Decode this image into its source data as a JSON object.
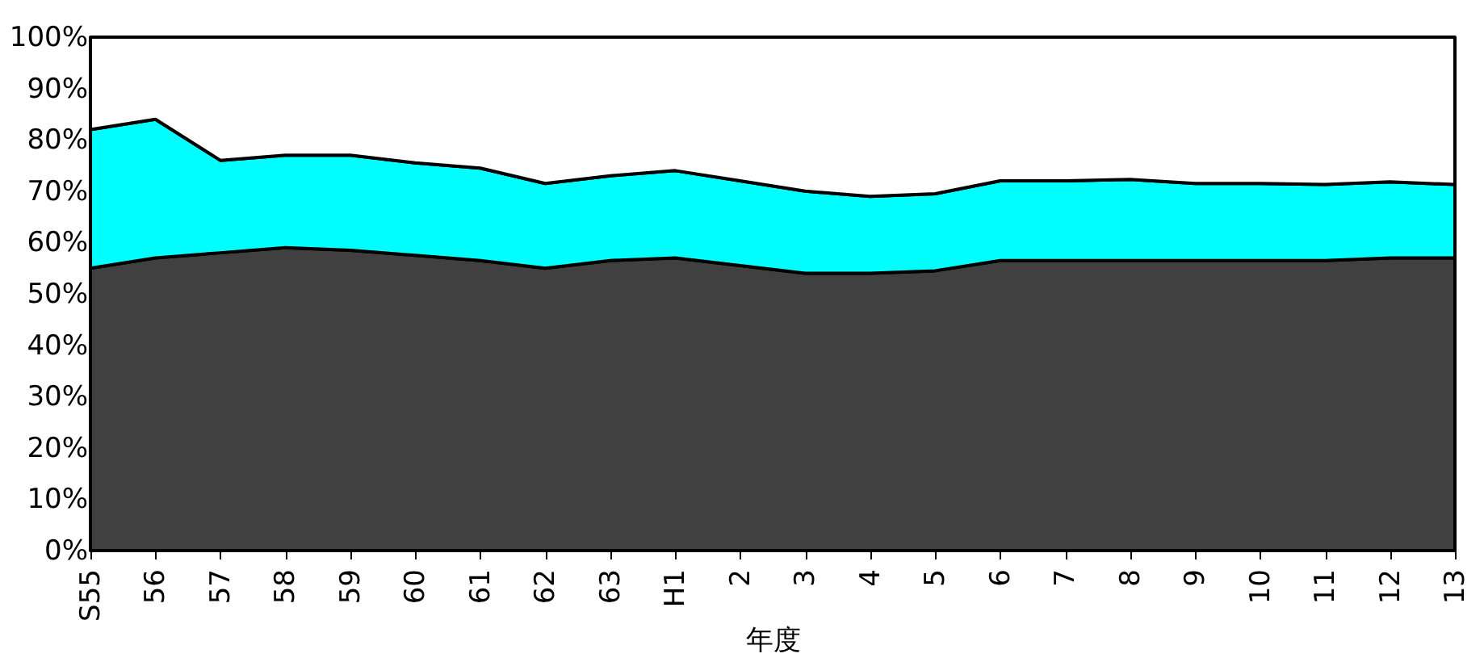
{
  "chart_data": {
    "type": "area",
    "stacked": true,
    "xlabel": "年度",
    "categories": [
      "S55",
      "56",
      "57",
      "58",
      "59",
      "60",
      "61",
      "62",
      "63",
      "H1",
      "2",
      "3",
      "4",
      "5",
      "6",
      "7",
      "8",
      "9",
      "10",
      "11",
      "12",
      "13"
    ],
    "series": [
      {
        "color": "#404040",
        "values": [
          55,
          57,
          58,
          59,
          58.5,
          57.5,
          56.5,
          55,
          56.5,
          57,
          55.5,
          54,
          54,
          54.5,
          56.5,
          56.5,
          56.5,
          56.5,
          56.5,
          56.5,
          57,
          57
        ]
      },
      {
        "color": "#00ffff",
        "values": [
          27,
          27,
          18,
          18,
          18.5,
          18,
          18,
          16.5,
          16.5,
          17,
          16.5,
          16,
          15,
          15,
          15.5,
          15.5,
          15.8,
          15,
          15,
          14.8,
          14.8,
          14.3
        ]
      },
      {
        "color": "#ffffff",
        "values": [
          18,
          16,
          24,
          23,
          23,
          24.5,
          25.5,
          28.5,
          27,
          26,
          28,
          30,
          31,
          30.5,
          28,
          28,
          27.7,
          28.5,
          28.5,
          28.7,
          28.2,
          28.7
        ]
      }
    ],
    "ylim": [
      0,
      100
    ],
    "yticks": [
      {
        "value": 0,
        "label": "0%"
      },
      {
        "value": 10,
        "label": "10%"
      },
      {
        "value": 20,
        "label": "20%"
      },
      {
        "value": 30,
        "label": "30%"
      },
      {
        "value": 40,
        "label": "40%"
      },
      {
        "value": 50,
        "label": "50%"
      },
      {
        "value": 60,
        "label": "60%"
      },
      {
        "value": 70,
        "label": "70%"
      },
      {
        "value": 80,
        "label": "80%"
      },
      {
        "value": 90,
        "label": "90%"
      },
      {
        "value": 100,
        "label": "100%"
      }
    ],
    "legend": false
  }
}
